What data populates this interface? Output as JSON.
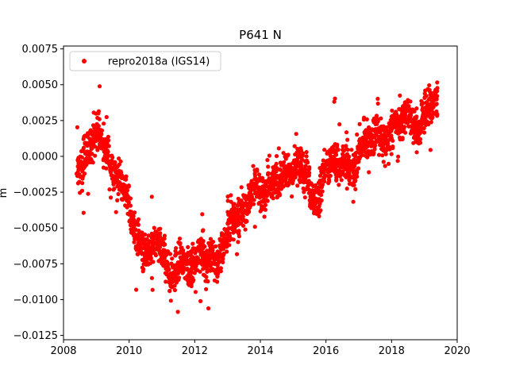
{
  "chart_data": {
    "type": "scatter",
    "title": "P641 N",
    "xlabel": "",
    "ylabel": "m",
    "xlim": [
      2008.0,
      2020.0
    ],
    "ylim": [
      -0.0128,
      0.0077
    ],
    "xticks": [
      2008,
      2010,
      2012,
      2014,
      2016,
      2018,
      2020
    ],
    "xtick_labels": [
      "2008",
      "2010",
      "2012",
      "2014",
      "2016",
      "2018",
      "2020"
    ],
    "yticks": [
      -0.0125,
      -0.01,
      -0.0075,
      -0.005,
      -0.0025,
      0.0,
      0.0025,
      0.005,
      0.0075
    ],
    "ytick_labels": [
      "−0.0125",
      "−0.0100",
      "−0.0075",
      "−0.0050",
      "−0.0025",
      "0.0000",
      "0.0025",
      "0.0050",
      "0.0075"
    ],
    "grid": false,
    "legend_position": "top-left",
    "series": [
      {
        "name": "repro2018a (IGS14)",
        "color": "#ff0000",
        "marker": "circle",
        "x": [
          2008.45,
          2008.55,
          2008.65,
          2008.75,
          2008.85,
          2008.95,
          2009.05,
          2009.15,
          2009.25,
          2009.35,
          2009.45,
          2009.55,
          2009.65,
          2009.75,
          2009.85,
          2009.95,
          2010.05,
          2010.15,
          2010.25,
          2010.35,
          2010.45,
          2010.55,
          2010.65,
          2010.75,
          2010.85,
          2010.95,
          2011.05,
          2011.15,
          2011.25,
          2011.35,
          2011.45,
          2011.55,
          2011.65,
          2011.75,
          2011.85,
          2011.95,
          2012.05,
          2012.15,
          2012.25,
          2012.35,
          2012.45,
          2012.55,
          2012.65,
          2012.75,
          2012.85,
          2012.95,
          2013.05,
          2013.15,
          2013.25,
          2013.35,
          2013.45,
          2013.55,
          2013.65,
          2013.75,
          2013.85,
          2013.95,
          2014.05,
          2014.15,
          2014.25,
          2014.35,
          2014.45,
          2014.55,
          2014.65,
          2014.75,
          2014.85,
          2014.95,
          2015.05,
          2015.15,
          2015.25,
          2015.35,
          2015.45,
          2015.55,
          2015.65,
          2015.75,
          2015.85,
          2015.95,
          2016.05,
          2016.15,
          2016.25,
          2016.35,
          2016.45,
          2016.55,
          2016.65,
          2016.75,
          2016.85,
          2016.95,
          2017.05,
          2017.15,
          2017.25,
          2017.35,
          2017.45,
          2017.55,
          2017.65,
          2017.75,
          2017.85,
          2017.95,
          2018.05,
          2018.15,
          2018.25,
          2018.35,
          2018.45,
          2018.55,
          2018.65,
          2018.75,
          2018.85,
          2018.95,
          2019.05,
          2019.15,
          2019.25,
          2019.35
        ],
        "y": [
          -0.001,
          -0.0005,
          0.0,
          0.0005,
          0.001,
          0.0015,
          0.0018,
          0.0012,
          0.0005,
          0.0,
          -0.0008,
          -0.0012,
          -0.0015,
          -0.0018,
          -0.002,
          -0.003,
          -0.004,
          -0.005,
          -0.0058,
          -0.0062,
          -0.0065,
          -0.0066,
          -0.0065,
          -0.0062,
          -0.006,
          -0.006,
          -0.0065,
          -0.0075,
          -0.0085,
          -0.0082,
          -0.0078,
          -0.0072,
          -0.007,
          -0.0075,
          -0.008,
          -0.0078,
          -0.0072,
          -0.0068,
          -0.007,
          -0.0075,
          -0.0072,
          -0.007,
          -0.0075,
          -0.0072,
          -0.0065,
          -0.0055,
          -0.0048,
          -0.0045,
          -0.0042,
          -0.004,
          -0.0038,
          -0.0035,
          -0.003,
          -0.0025,
          -0.002,
          -0.0022,
          -0.0028,
          -0.0025,
          -0.002,
          -0.0018,
          -0.0015,
          -0.002,
          -0.0012,
          -0.0008,
          -0.001,
          -0.0012,
          -0.0008,
          -0.0005,
          -0.0008,
          -0.001,
          -0.0015,
          -0.0025,
          -0.003,
          -0.0028,
          -0.002,
          -0.0012,
          -0.0008,
          -0.0005,
          -0.0002,
          -0.0005,
          -0.001,
          -0.0005,
          -0.0003,
          -0.0008,
          -0.0012,
          -0.0005,
          0.0005,
          0.001,
          0.0012,
          0.001,
          0.0015,
          0.002,
          0.0015,
          0.001,
          0.0012,
          0.0015,
          0.0022,
          0.0025,
          0.002,
          0.0025,
          0.003,
          0.0028,
          0.0022,
          0.002,
          0.0018,
          0.0028,
          0.0032,
          0.0035,
          0.0038,
          0.004
        ]
      }
    ]
  }
}
